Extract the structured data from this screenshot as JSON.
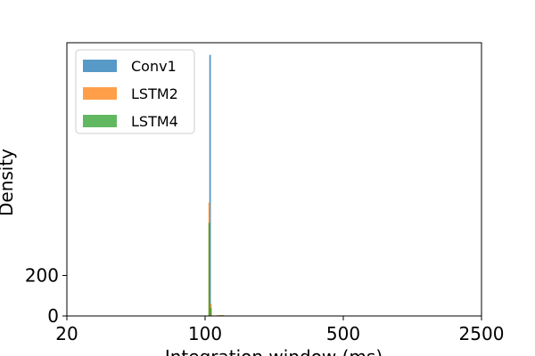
{
  "chart_data": {
    "type": "bar",
    "subtype": "histogram",
    "xlabel": "Integration window (ms)",
    "ylabel": "Density",
    "x_scale": "log",
    "xlim": [
      20,
      2500
    ],
    "ylim": [
      0,
      1350
    ],
    "x_ticks": [
      {
        "value": 20,
        "label": "20"
      },
      {
        "value": 100,
        "label": "100"
      },
      {
        "value": 500,
        "label": "500"
      },
      {
        "value": 2500,
        "label": "2500"
      }
    ],
    "y_ticks": [
      {
        "value": 0,
        "label": "0"
      },
      {
        "value": 200,
        "label": "200"
      }
    ],
    "legend_position": "upper-left",
    "series": [
      {
        "name": "Conv1",
        "color": "#1f77b4",
        "bins": [
          {
            "x0": 105.0,
            "x1": 107.0,
            "density": 1290
          }
        ]
      },
      {
        "name": "LSTM2",
        "color": "#ff7f0e",
        "bins": [
          {
            "x0": 104.0,
            "x1": 106.0,
            "density": 560
          },
          {
            "x0": 106.0,
            "x1": 108.0,
            "density": 60
          },
          {
            "x0": 115.0,
            "x1": 125.0,
            "density": 4
          }
        ]
      },
      {
        "name": "LSTM4",
        "color": "#2ca02c",
        "bins": [
          {
            "x0": 104.0,
            "x1": 106.0,
            "density": 460
          },
          {
            "x0": 106.0,
            "x1": 108.0,
            "density": 40
          },
          {
            "x0": 118.0,
            "x1": 124.0,
            "density": 3
          }
        ]
      }
    ]
  }
}
